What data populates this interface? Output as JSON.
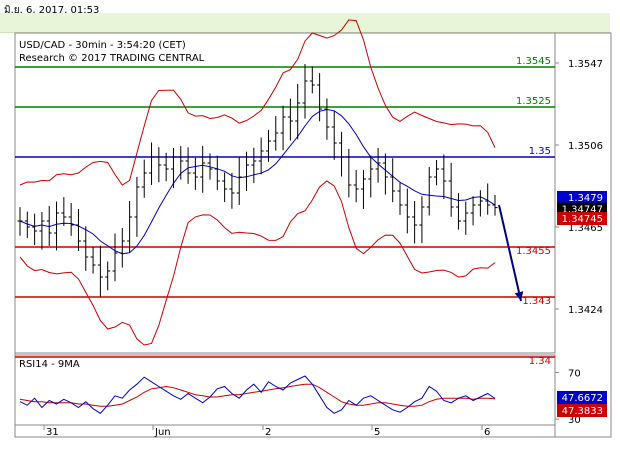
{
  "window": {
    "title": "มิ.ย. 6, 2017, 01:53"
  },
  "chart": {
    "header": {
      "line1": "USD/CAD - 30min - 3:54:20 (CET)",
      "line2": "Research © 2017 TRADING CENTRAL"
    },
    "colors": {
      "resistance": "#008000",
      "pivot": "#0000cc",
      "support": "#cc0000",
      "bollinger": "#cc0000",
      "moving_average": "#0000cc",
      "candles": "#000000",
      "arrow": "#000080",
      "badge_blue": "#0000cc",
      "badge_black": "#000000",
      "badge_red": "#cc0000"
    }
  },
  "chart_data": [
    {
      "type": "line",
      "title": "USD/CAD - 30min - 3:54:20 (CET)",
      "subtitle": "Research © 2017 TRADING CENTRAL",
      "ylim": [
        1.3402,
        1.3562
      ],
      "y_ticks": [
        "1.3547",
        "1.3506",
        "1.3465",
        "1.3424"
      ],
      "x_ticks": [
        "31",
        "Jun",
        "2",
        "5",
        "6"
      ],
      "levels": [
        {
          "value": 1.3545,
          "label": "1.3545",
          "kind": "resistance"
        },
        {
          "value": 1.3525,
          "label": "1.3525",
          "kind": "resistance"
        },
        {
          "value": 1.35,
          "label": "1.35",
          "kind": "pivot"
        },
        {
          "value": 1.3455,
          "label": "1.3455",
          "kind": "support"
        },
        {
          "value": 1.343,
          "label": "1.343",
          "kind": "support"
        },
        {
          "value": 1.34,
          "label": "1.34",
          "kind": "support"
        }
      ],
      "price_badges": [
        {
          "label": "1.3479",
          "value": 1.3479,
          "style": "blue"
        },
        {
          "label": "1.34747",
          "value": 1.34747,
          "style": "black"
        },
        {
          "label": "1.34745",
          "value": 1.34745,
          "style": "red"
        }
      ],
      "series": [
        {
          "name": "USD/CAD",
          "values": [
            1.3468,
            1.3465,
            1.3463,
            1.3468,
            1.3462,
            1.3472,
            1.347,
            1.3466,
            1.3458,
            1.345,
            1.3446,
            1.344,
            1.3443,
            1.3452,
            1.3458,
            1.347,
            1.3485,
            1.3492,
            1.35,
            1.3496,
            1.3494,
            1.35,
            1.3498,
            1.3492,
            1.349,
            1.3497,
            1.3494,
            1.3488,
            1.3484,
            1.3482,
            1.349,
            1.3496,
            1.3498,
            1.3503,
            1.3508,
            1.3512,
            1.352,
            1.3518,
            1.3527,
            1.3538,
            1.3536,
            1.3524,
            1.3515,
            1.3507,
            1.35,
            1.3486,
            1.3484,
            1.3489,
            1.3494,
            1.3497,
            1.349,
            1.3483,
            1.3476,
            1.347,
            1.3466,
            1.3475,
            1.349,
            1.3494,
            1.3488,
            1.3475,
            1.3468,
            1.3472,
            1.3476,
            1.3478,
            1.3476,
            1.34747
          ]
        }
      ],
      "forecast_arrow": {
        "from": 1.3476,
        "to": 1.3428
      }
    },
    {
      "type": "line",
      "title": "RSI14 - 9MA",
      "ylim": [
        25,
        85
      ],
      "y_ticks": [
        "70",
        "30"
      ],
      "badges": [
        {
          "label": "47.6672",
          "style": "blue"
        },
        {
          "label": "47.3833",
          "style": "red"
        }
      ],
      "series": [
        {
          "name": "RSI14",
          "values": [
            45,
            42,
            48,
            40,
            46,
            43,
            47,
            44,
            40,
            45,
            39,
            35,
            42,
            50,
            48,
            55,
            60,
            66,
            62,
            58,
            54,
            50,
            47,
            52,
            48,
            44,
            49,
            56,
            58,
            52,
            48,
            55,
            60,
            53,
            62,
            58,
            55,
            61,
            64,
            67,
            60,
            50,
            40,
            35,
            38,
            46,
            42,
            48,
            50,
            46,
            42,
            38,
            36,
            40,
            45,
            48,
            58,
            54,
            46,
            44,
            48,
            50,
            46,
            49,
            52,
            47.7
          ]
        },
        {
          "name": "9MA",
          "values": [
            47,
            46,
            45,
            45,
            44,
            44,
            44,
            44,
            43,
            43,
            42,
            41,
            41,
            42,
            43,
            46,
            49,
            53,
            56,
            57,
            58,
            57,
            55,
            53,
            51,
            50,
            49,
            49,
            50,
            51,
            51,
            52,
            53,
            54,
            55,
            56,
            57,
            58,
            59,
            60,
            60,
            57,
            53,
            49,
            45,
            43,
            42,
            42,
            43,
            44,
            44,
            43,
            42,
            41,
            41,
            42,
            45,
            47,
            48,
            48,
            48,
            48,
            47,
            48,
            48,
            47.4
          ]
        }
      ]
    }
  ]
}
